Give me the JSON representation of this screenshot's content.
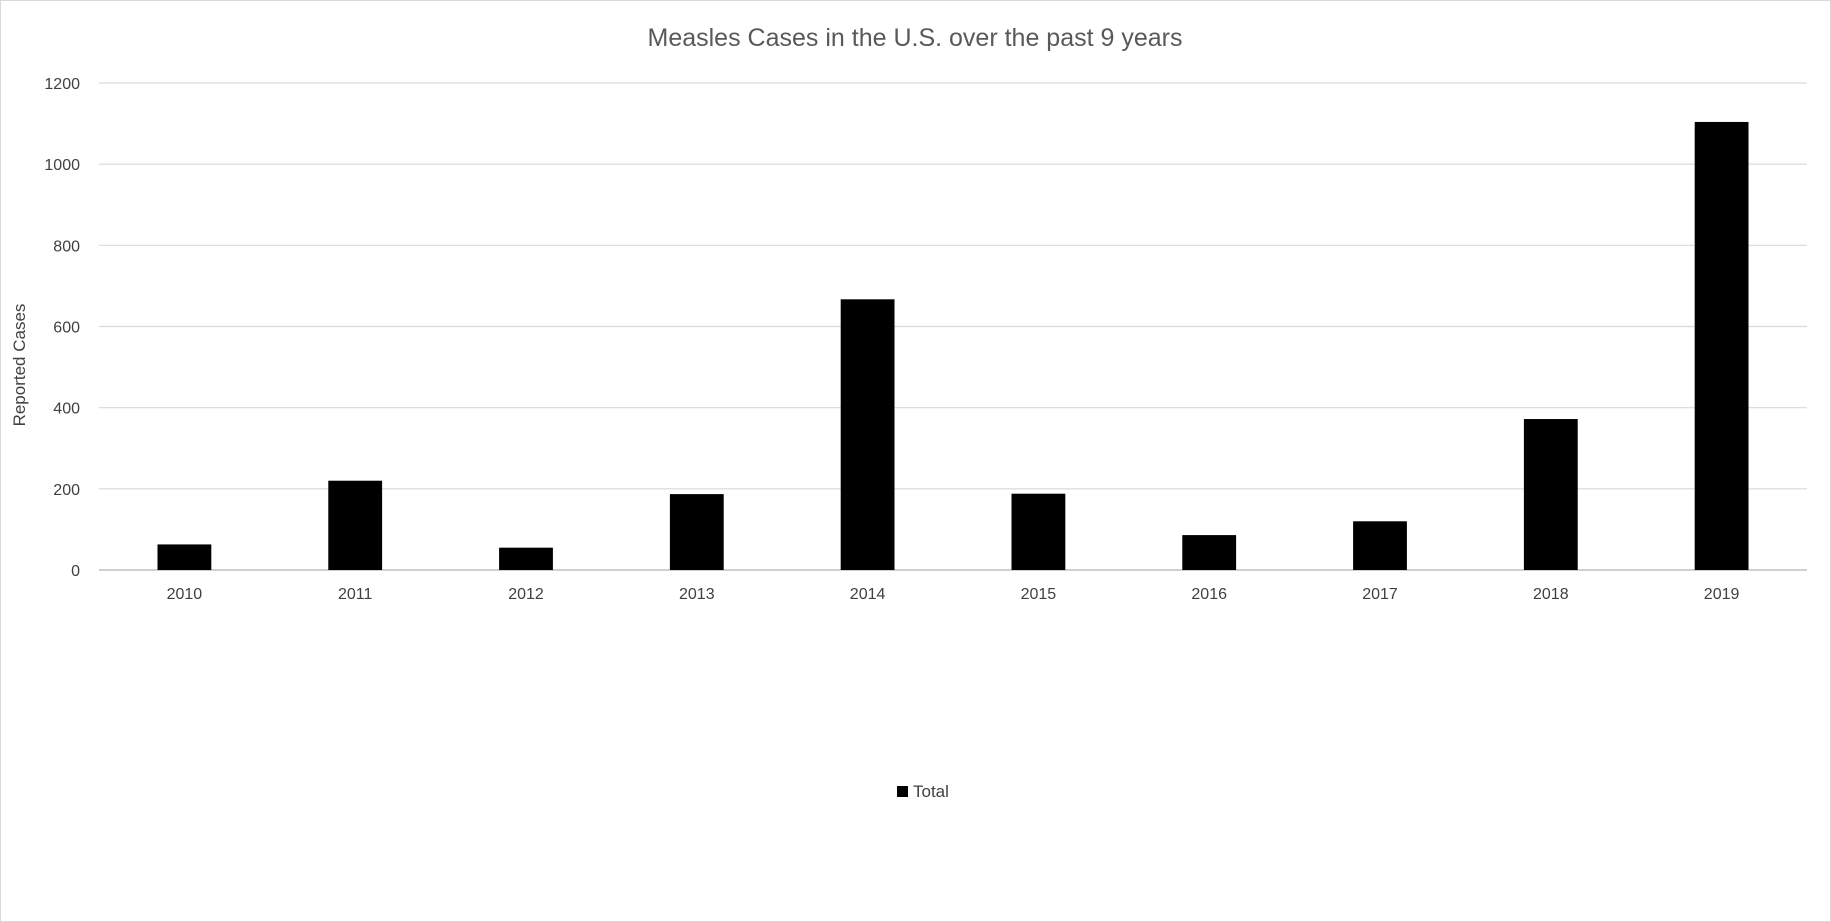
{
  "chart_data": {
    "type": "bar",
    "title": "Measles Cases in the U.S. over the past 9 years",
    "xlabel": "",
    "ylabel": "Reported Cases",
    "categories": [
      "2010",
      "2011",
      "2012",
      "2013",
      "2014",
      "2015",
      "2016",
      "2017",
      "2018",
      "2019"
    ],
    "series": [
      {
        "name": "Total",
        "color": "#000000",
        "values": [
          63,
          220,
          55,
          187,
          667,
          188,
          86,
          120,
          372,
          1104
        ]
      }
    ],
    "ylim": [
      0,
      1200
    ],
    "yticks": [
      "0",
      "200",
      "400",
      "600",
      "800",
      "1000",
      "1200"
    ],
    "grid": true,
    "legend_position": "bottom"
  }
}
